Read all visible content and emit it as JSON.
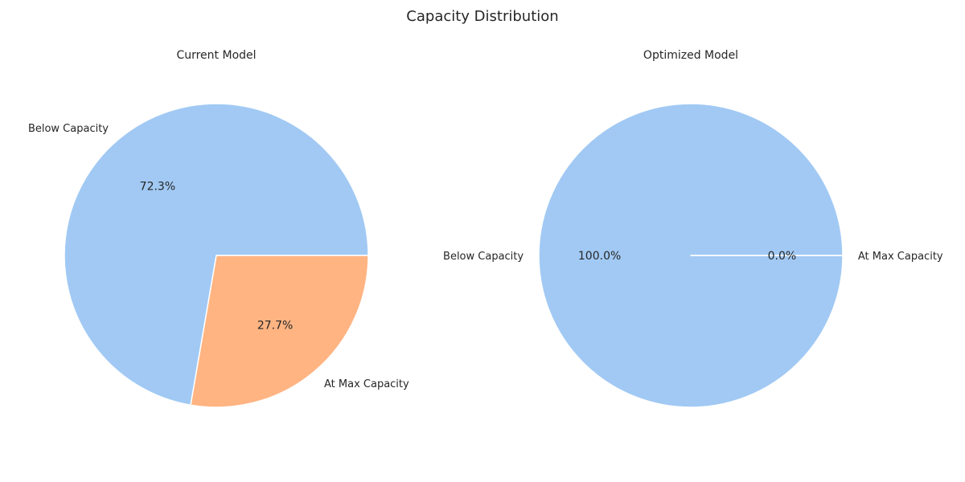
{
  "figure": {
    "title": "Capacity Distribution"
  },
  "chart_data": [
    {
      "type": "pie",
      "title": "Current Model",
      "labels": [
        "Below Capacity",
        "At Max Capacity"
      ],
      "values": [
        72.3,
        27.7
      ],
      "value_labels": [
        "72.3%",
        "27.7%"
      ],
      "colors": [
        "#a1c9f4",
        "#ffb482"
      ],
      "start_angle": 0,
      "direction": "counterclockwise"
    },
    {
      "type": "pie",
      "title": "Optimized Model",
      "labels": [
        "Below Capacity",
        "At Max Capacity"
      ],
      "values": [
        100.0,
        0.0
      ],
      "value_labels": [
        "100.0%",
        "0.0%"
      ],
      "colors": [
        "#a1c9f4",
        "#ffb482"
      ],
      "start_angle": 0,
      "direction": "counterclockwise"
    }
  ]
}
